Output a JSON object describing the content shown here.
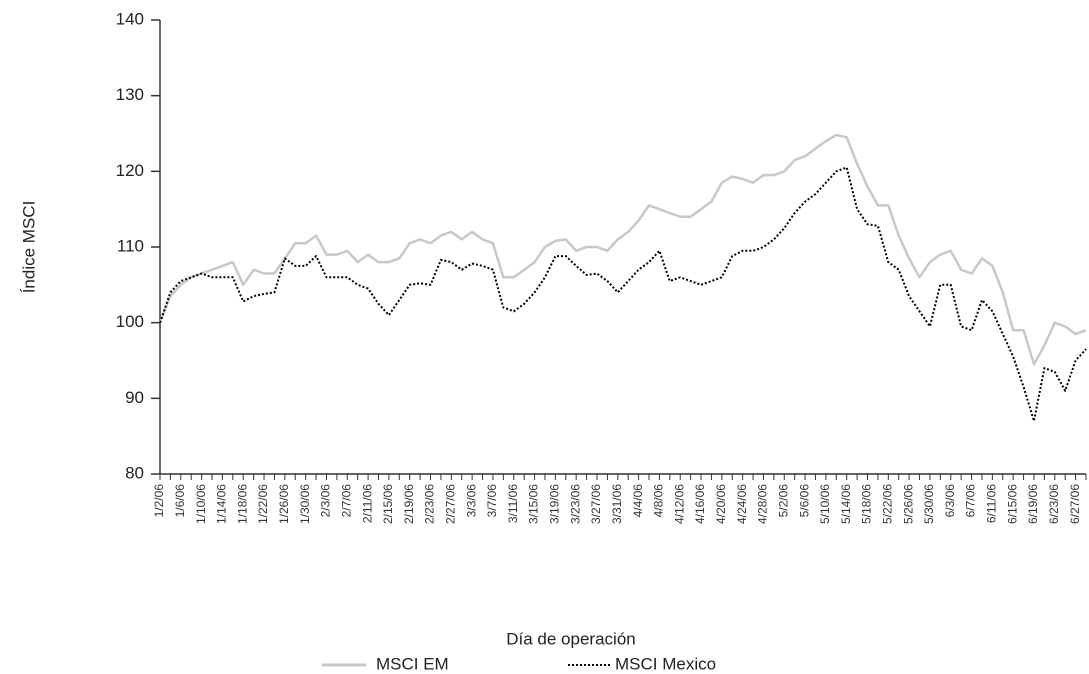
{
  "chart_data": {
    "type": "line",
    "x_label": "Día de operación",
    "y_label": "Índice MSCI",
    "categories": [
      "1/2/06",
      null,
      "1/6/06",
      null,
      "1/10/06",
      null,
      "1/14/06",
      null,
      "1/18/06",
      null,
      "1/22/06",
      null,
      "1/26/06",
      null,
      "1/30/06",
      null,
      "2/3/06",
      null,
      "2/7/06",
      null,
      "2/11/06",
      null,
      "2/15/06",
      null,
      "2/19/06",
      null,
      "2/23/06",
      null,
      "2/27/06",
      null,
      "3/3/06",
      null,
      "3/7/06",
      null,
      "3/11/06",
      null,
      "3/15/06",
      null,
      "3/19/06",
      null,
      "3/23/06",
      null,
      "3/27/06",
      null,
      "3/31/06",
      null,
      "4/4/06",
      null,
      "4/8/06",
      null,
      "4/12/06",
      null,
      "4/16/06",
      null,
      "4/20/06",
      null,
      "4/24/06",
      null,
      "4/28/06",
      null,
      "5/2/06",
      null,
      "5/6/06",
      null,
      "5/10/06",
      null,
      "5/14/06",
      null,
      "5/18/06",
      null,
      "5/22/06",
      null,
      "5/26/06",
      null,
      "5/30/06",
      null,
      "6/3/06",
      null,
      "6/7/06",
      null,
      "6/11/06",
      null,
      "6/15/06",
      null,
      "6/19/06",
      null,
      "6/23/06",
      null,
      "6/27/06",
      null
    ],
    "series": [
      {
        "name": "MSCI EM",
        "color": "#c8c8c8",
        "style": "solid",
        "values": [
          100,
          103.5,
          105,
          106,
          106.5,
          107,
          107.5,
          108,
          105,
          107,
          106.5,
          106.5,
          108.5,
          110.5,
          110.5,
          111.5,
          109,
          109,
          109.5,
          108,
          109,
          108,
          108,
          108.5,
          110.5,
          111,
          110.5,
          111.5,
          112,
          111,
          112,
          111,
          110.5,
          106,
          106,
          107,
          108,
          110,
          110.8,
          111,
          109.5,
          110,
          110,
          109.5,
          111,
          112,
          113.5,
          115.5,
          115,
          114.5,
          114,
          114,
          115,
          116,
          118.5,
          119.3,
          119,
          118.5,
          119.5,
          119.5,
          120,
          121.5,
          122,
          123,
          124,
          124.8,
          124.5,
          121,
          118,
          115.5,
          115.5,
          111.5,
          108.5,
          106,
          108,
          109,
          109.5,
          107,
          106.5,
          108.5,
          107.5,
          104,
          99,
          99,
          94.5,
          97,
          100,
          99.5,
          98.5,
          99
        ]
      },
      {
        "name": "MSCI Mexico",
        "color": "#000000",
        "style": "dotted",
        "values": [
          100,
          104,
          105.5,
          106,
          106.5,
          106,
          106,
          106,
          102.8,
          103.5,
          103.8,
          104,
          108.5,
          107.5,
          107.5,
          108.8,
          106,
          106,
          106,
          105,
          104.5,
          102.5,
          101,
          103,
          105,
          105.2,
          105,
          108.3,
          108,
          107,
          107.8,
          107.5,
          107,
          102,
          101.5,
          102.5,
          104,
          106,
          108.8,
          108.8,
          107.5,
          106.3,
          106.5,
          105.5,
          104,
          105.5,
          107,
          108,
          109.5,
          105.5,
          106,
          105.5,
          105,
          105.5,
          106,
          108.8,
          109.5,
          109.5,
          110,
          111,
          112.5,
          114.5,
          116,
          117,
          118.5,
          120,
          120.5,
          115,
          113,
          112.8,
          108,
          107,
          103.5,
          101.5,
          99.5,
          105,
          105,
          99.5,
          99,
          103,
          101.5,
          98.5,
          95.5,
          91.5,
          87,
          94,
          93.5,
          91,
          95,
          96.5
        ]
      }
    ],
    "ylim": [
      80,
      140
    ],
    "yticks": [
      80,
      90,
      100,
      110,
      120,
      130,
      140
    ]
  }
}
